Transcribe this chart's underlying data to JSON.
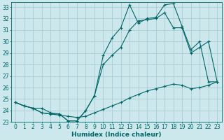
{
  "xlabel": "Humidex (Indice chaleur)",
  "bg_color": "#cce8ec",
  "grid_color": "#aaccd4",
  "line_color": "#006666",
  "xlim": [
    -0.5,
    23.5
  ],
  "ylim": [
    23,
    33.4
  ],
  "xticks": [
    0,
    1,
    2,
    3,
    4,
    5,
    6,
    7,
    8,
    9,
    10,
    11,
    12,
    13,
    14,
    15,
    16,
    17,
    18,
    19,
    20,
    21,
    22,
    23
  ],
  "yticks": [
    23,
    24,
    25,
    26,
    27,
    28,
    29,
    30,
    31,
    32,
    33
  ],
  "line1_x": [
    0,
    1,
    2,
    3,
    4,
    5,
    6,
    7,
    8,
    9,
    10,
    11,
    12,
    13,
    14,
    15,
    16,
    17,
    18,
    19,
    20,
    21,
    22,
    23
  ],
  "line1_y": [
    24.7,
    24.4,
    24.2,
    24.2,
    23.8,
    23.7,
    23.1,
    23.1,
    24.0,
    25.3,
    28.8,
    30.3,
    31.2,
    33.2,
    31.6,
    32.0,
    32.1,
    33.2,
    33.3,
    31.3,
    29.3,
    30.0,
    26.5,
    26.5
  ],
  "line2_x": [
    0,
    1,
    2,
    3,
    4,
    5,
    6,
    7,
    8,
    9,
    10,
    11,
    12,
    13,
    14,
    15,
    16,
    17,
    18,
    19,
    20,
    21,
    22,
    23
  ],
  "line2_y": [
    24.7,
    24.4,
    24.2,
    23.8,
    23.7,
    23.7,
    23.1,
    23.1,
    24.0,
    25.3,
    28.0,
    28.8,
    29.5,
    31.0,
    31.8,
    31.9,
    32.0,
    32.5,
    31.2,
    31.2,
    29.0,
    29.5,
    30.0,
    26.5
  ],
  "line3_x": [
    0,
    1,
    2,
    3,
    4,
    5,
    6,
    7,
    8,
    9,
    10,
    11,
    12,
    13,
    14,
    15,
    16,
    17,
    18,
    19,
    20,
    21,
    22,
    23
  ],
  "line3_y": [
    24.7,
    24.4,
    24.2,
    23.8,
    23.7,
    23.6,
    23.5,
    23.4,
    23.5,
    23.8,
    24.1,
    24.4,
    24.7,
    25.1,
    25.4,
    25.7,
    25.9,
    26.1,
    26.3,
    26.2,
    25.9,
    26.0,
    26.2,
    26.5
  ],
  "tick_fontsize": 5.5,
  "xlabel_fontsize": 6.5
}
